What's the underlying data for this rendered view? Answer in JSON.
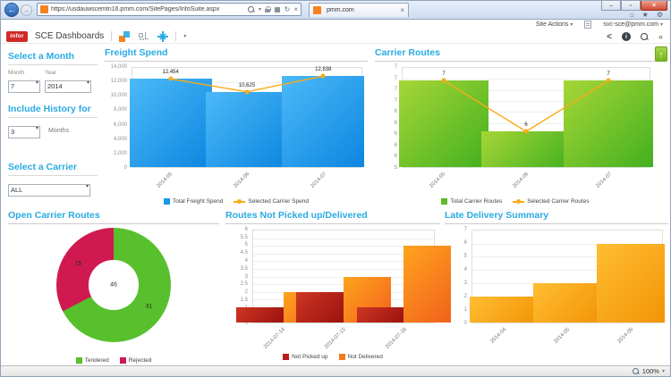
{
  "browser": {
    "url": "https://usdauwscemtn16.pmm.com/SitePages/InfoSuite.aspx",
    "tab_title": "pmm.com",
    "site_actions": "Site Actions",
    "user": "svc-sce@pmm.com"
  },
  "header": {
    "logo": "infor",
    "title": "SCE Dashboards"
  },
  "icons": {
    "back": "←",
    "forward": "→",
    "compat": "▦",
    "refresh": "↻",
    "stop": "×",
    "home": "⌂",
    "favorites": "★",
    "tools": "⚙",
    "minimize": "–",
    "maximize": "▫",
    "close": "×",
    "tab_close": "×",
    "caret": "▾",
    "share": "<",
    "info": "i",
    "collapse": "«",
    "export": "↑"
  },
  "sidebar": {
    "month": {
      "title": "Select a Month",
      "month_label": "Month",
      "year_label": "Year",
      "month_value": "7",
      "year_value": "2014"
    },
    "history": {
      "title": "Include History for",
      "value": "3",
      "suffix": "Months"
    },
    "carrier": {
      "title": "Select a Carrier",
      "value": "ALL"
    }
  },
  "status": {
    "zoom": "100%"
  },
  "chart_data": [
    {
      "id": "freight-spend",
      "type": "bar",
      "title": "Freight Spend",
      "categories": [
        "2014-05",
        "2014-06",
        "2014-07"
      ],
      "series": [
        {
          "name": "Total Freight Spend",
          "kind": "bar",
          "color_start": "#4cb9f8",
          "color_end": "#0d86e0",
          "legend_color": "#1798ea",
          "values": [
            12454,
            10625,
            12838
          ]
        },
        {
          "name": "Selected Carrier Spend",
          "kind": "line",
          "color": "#fbab18",
          "values": [
            12454,
            10625,
            12838
          ],
          "labels": [
            "12,454",
            "10,625",
            "12,838"
          ]
        }
      ],
      "ylim": [
        0,
        14000
      ],
      "yticks": [
        "14,000",
        "12,000",
        "10,000",
        "8,000",
        "6,000",
        "4,000",
        "2,000",
        "0"
      ],
      "bar_pct": 36,
      "legend_position": "bottom",
      "grid": true
    },
    {
      "id": "carrier-routes",
      "type": "bar",
      "title": "Carrier Routes",
      "categories": [
        "2014-05",
        "2014-06",
        "2014-07"
      ],
      "series": [
        {
          "name": "Total Carrier Routes",
          "kind": "bar",
          "color_start": "#a6d637",
          "color_end": "#43b01f",
          "legend_color": "#5eb829",
          "values": [
            7,
            6,
            7
          ]
        },
        {
          "name": "Selected Carrier Routes",
          "kind": "line",
          "color": "#fbab18",
          "values": [
            7,
            6,
            7
          ],
          "labels": [
            "7",
            "6",
            "7"
          ]
        }
      ],
      "ylim": [
        5.3,
        7.25
      ],
      "yticks": [
        "7",
        "7",
        "7",
        "7",
        "6",
        "6",
        "6",
        "6",
        "6",
        "5"
      ],
      "bar_pct": 36,
      "legend_position": "bottom",
      "grid": true
    },
    {
      "id": "open-carrier-routes",
      "type": "donut",
      "title": "Open Carrier Routes",
      "slices": [
        {
          "name": "Tendered",
          "value": 31,
          "color": "#57c02c"
        },
        {
          "name": "Rejected",
          "value": 15,
          "color": "#d01950"
        }
      ],
      "total": 46,
      "legend_position": "bottom"
    },
    {
      "id": "routes-not-picked-delivered",
      "type": "bar",
      "title": "Routes Not Picked up/Delivered",
      "categories": [
        "2014-07-14",
        "2014-07-15",
        "2014-07-16"
      ],
      "series": [
        {
          "name": "Not Picked up",
          "kind": "bar",
          "color_start": "#cd3722",
          "color_end": "#9c1110",
          "legend_color": "#b71c1c",
          "values": [
            1,
            2,
            1
          ]
        },
        {
          "name": "Not Delivered",
          "kind": "bar",
          "color_start": "#ffa41e",
          "color_end": "#f2611c",
          "legend_color": "#f47a20",
          "values": [
            2,
            3,
            5
          ]
        }
      ],
      "ylim": [
        0,
        6
      ],
      "yticks": [
        "6",
        "5.5",
        "5",
        "4.5",
        "4",
        "3.5",
        "3",
        "2.5",
        "2",
        "1.5",
        "1",
        "0.5",
        "0"
      ],
      "bar_pct": 26,
      "legend_position": "bottom",
      "grid": true
    },
    {
      "id": "late-delivery-summary",
      "type": "bar",
      "title": "Late Delivery Summary",
      "categories": [
        "2014-04",
        "2014-05",
        "2014-06"
      ],
      "series": [
        {
          "name": "",
          "kind": "bar",
          "color_start": "#ffbe33",
          "color_end": "#f29404",
          "values": [
            2,
            3,
            6
          ]
        }
      ],
      "ylim": [
        0,
        7
      ],
      "yticks": [
        "7",
        "6",
        "5",
        "4",
        "3",
        "2",
        "1",
        "0"
      ],
      "bar_pct": 36,
      "legend": false,
      "grid": true
    }
  ]
}
